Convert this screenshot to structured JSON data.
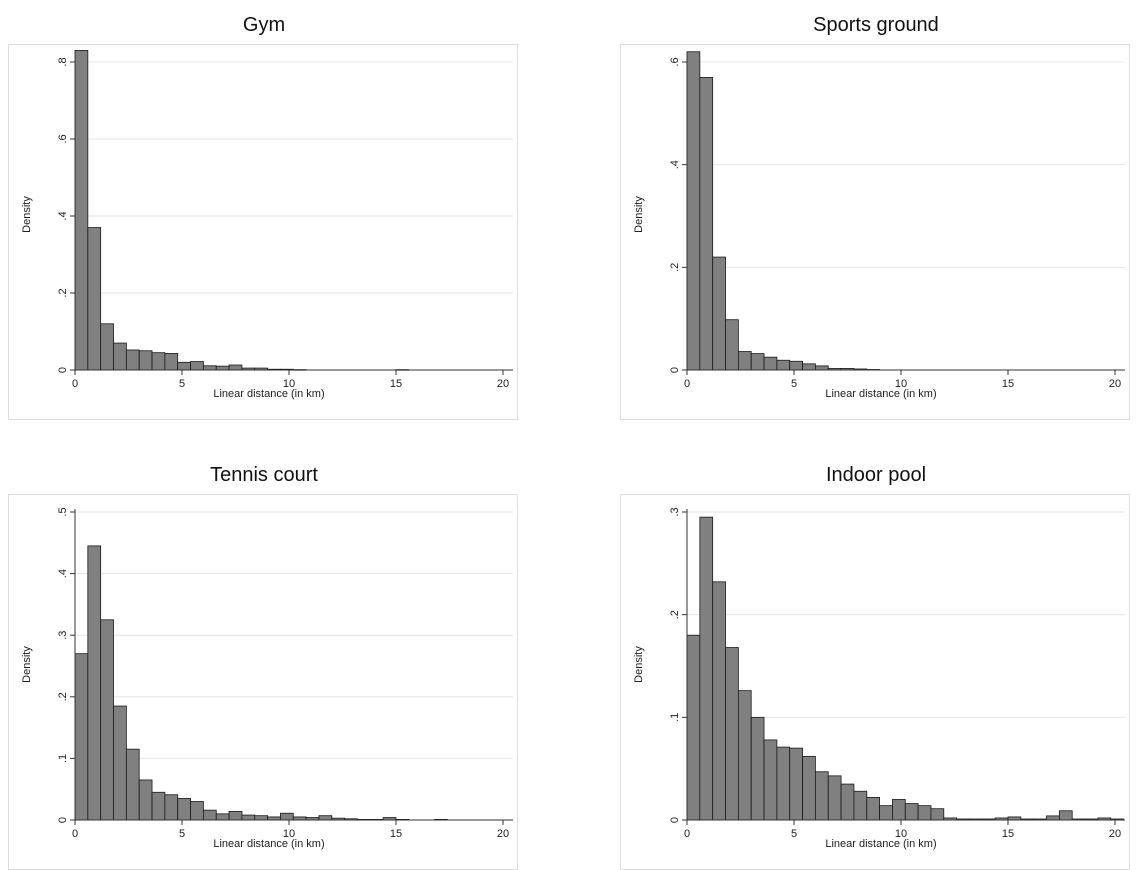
{
  "chart_data": [
    {
      "type": "bar",
      "title": "Gym",
      "xlabel": "Linear distance (in km)",
      "ylabel": "Density",
      "xlim": [
        0,
        20
      ],
      "ylim": [
        0,
        0.8
      ],
      "xticks": [
        "0",
        "5",
        "10",
        "15",
        "20"
      ],
      "yticks": [
        "0",
        ".2",
        ".4",
        ".6",
        ".8"
      ],
      "ytick_values": [
        0,
        0.2,
        0.4,
        0.6,
        0.8
      ],
      "bin_width": 0.6,
      "x": [
        0.3,
        0.9,
        1.5,
        2.1,
        2.7,
        3.3,
        3.9,
        4.5,
        5.1,
        5.7,
        6.3,
        6.9,
        7.5,
        8.1,
        8.7,
        9.3,
        9.9,
        10.5,
        15.3
      ],
      "values": [
        0.83,
        0.37,
        0.12,
        0.07,
        0.052,
        0.05,
        0.045,
        0.043,
        0.02,
        0.022,
        0.011,
        0.01,
        0.013,
        0.005,
        0.005,
        0.002,
        0.002,
        0.001,
        0.001
      ],
      "grid": true,
      "bar_color": "#808080"
    },
    {
      "type": "bar",
      "title": "Sports ground",
      "xlabel": "Linear distance (in km)",
      "ylabel": "Density",
      "xlim": [
        0,
        20
      ],
      "ylim": [
        0,
        0.6
      ],
      "xticks": [
        "0",
        "5",
        "10",
        "15",
        "20"
      ],
      "yticks": [
        "0",
        ".2",
        ".4",
        ".6"
      ],
      "ytick_values": [
        0,
        0.2,
        0.4,
        0.6
      ],
      "bin_width": 0.6,
      "x": [
        0.3,
        0.9,
        1.5,
        2.1,
        2.7,
        3.3,
        3.9,
        4.5,
        5.1,
        5.7,
        6.3,
        6.9,
        7.5,
        8.1,
        8.7
      ],
      "values": [
        0.62,
        0.57,
        0.22,
        0.098,
        0.036,
        0.032,
        0.025,
        0.019,
        0.017,
        0.012,
        0.008,
        0.003,
        0.003,
        0.002,
        0.001
      ],
      "grid": true,
      "bar_color": "#808080"
    },
    {
      "type": "bar",
      "title": "Tennis court",
      "xlabel": "Linear distance (in km)",
      "ylabel": "Density",
      "xlim": [
        0,
        20
      ],
      "ylim": [
        0,
        0.5
      ],
      "xticks": [
        "0",
        "5",
        "10",
        "15",
        "20"
      ],
      "yticks": [
        "0",
        ".1",
        ".2",
        ".3",
        ".4",
        ".5"
      ],
      "ytick_values": [
        0,
        0.1,
        0.2,
        0.3,
        0.4,
        0.5
      ],
      "bin_width": 0.6,
      "x": [
        0.3,
        0.9,
        1.5,
        2.1,
        2.7,
        3.3,
        3.9,
        4.5,
        5.1,
        5.7,
        6.3,
        6.9,
        7.5,
        8.1,
        8.7,
        9.3,
        9.9,
        10.5,
        11.1,
        11.7,
        12.3,
        12.9,
        13.5,
        14.1,
        14.7,
        15.3,
        17.1
      ],
      "values": [
        0.27,
        0.445,
        0.325,
        0.185,
        0.115,
        0.065,
        0.045,
        0.041,
        0.035,
        0.03,
        0.016,
        0.01,
        0.014,
        0.008,
        0.007,
        0.005,
        0.011,
        0.005,
        0.004,
        0.007,
        0.003,
        0.002,
        0.001,
        0.001,
        0.004,
        0.001,
        0.001
      ],
      "grid": true,
      "bar_color": "#808080"
    },
    {
      "type": "bar",
      "title": "Indoor pool",
      "xlabel": "Linear distance (in km)",
      "ylabel": "Density",
      "xlim": [
        0,
        20
      ],
      "ylim": [
        0,
        0.3
      ],
      "xticks": [
        "0",
        "5",
        "10",
        "15",
        "20"
      ],
      "yticks": [
        "0",
        ".1",
        ".2",
        ".3"
      ],
      "ytick_values": [
        0,
        0.1,
        0.2,
        0.3
      ],
      "bin_width": 0.6,
      "x": [
        0.3,
        0.9,
        1.5,
        2.1,
        2.7,
        3.3,
        3.9,
        4.5,
        5.1,
        5.7,
        6.3,
        6.9,
        7.5,
        8.1,
        8.7,
        9.3,
        9.9,
        10.5,
        11.1,
        11.7,
        12.3,
        12.9,
        13.5,
        14.1,
        14.7,
        15.3,
        15.9,
        16.5,
        17.1,
        17.7,
        18.3,
        18.9,
        19.5,
        20.1
      ],
      "values": [
        0.18,
        0.295,
        0.232,
        0.168,
        0.126,
        0.1,
        0.078,
        0.071,
        0.07,
        0.062,
        0.047,
        0.043,
        0.035,
        0.028,
        0.022,
        0.014,
        0.02,
        0.016,
        0.014,
        0.011,
        0.002,
        0.001,
        0.001,
        0.001,
        0.002,
        0.003,
        0.001,
        0.001,
        0.004,
        0.009,
        0.001,
        0.001,
        0.002,
        0.001
      ],
      "grid": true,
      "bar_color": "#808080"
    }
  ]
}
